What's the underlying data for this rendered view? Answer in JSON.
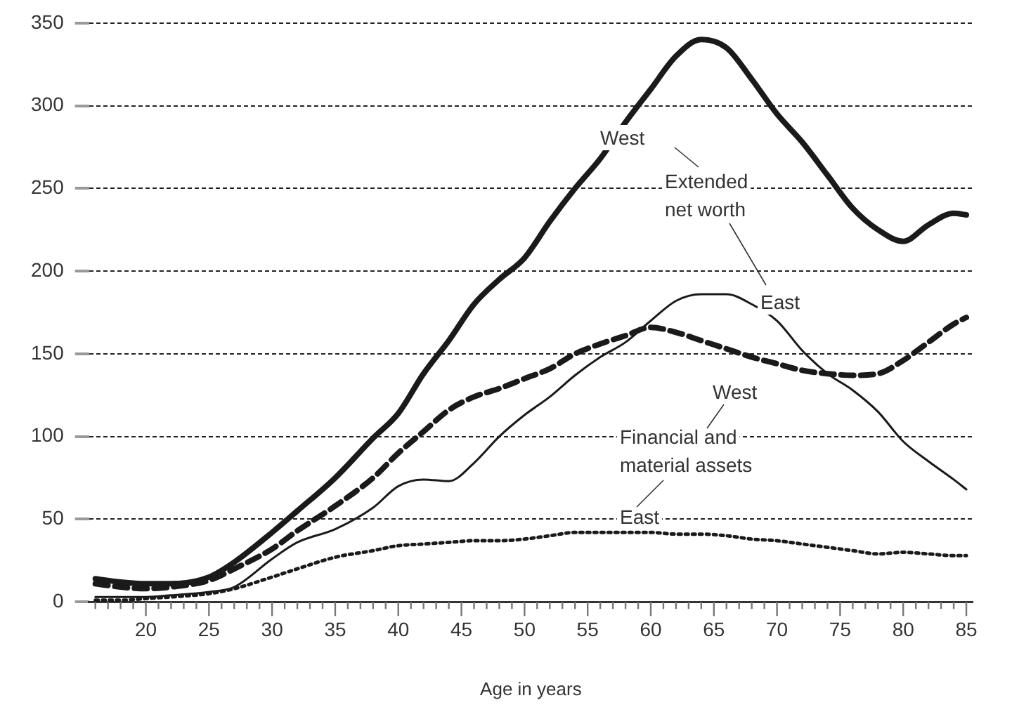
{
  "chart_data": {
    "type": "line",
    "xlabel": "Age in years",
    "xlim": [
      15.5,
      85.5
    ],
    "xticks": [
      {
        "value": 16,
        "label": null
      },
      {
        "value": 17,
        "label": null
      },
      {
        "value": 18,
        "label": null
      },
      {
        "value": 19,
        "label": null
      },
      20,
      {
        "value": 21,
        "label": null
      },
      {
        "value": 22,
        "label": null
      },
      {
        "value": 23,
        "label": null
      },
      {
        "value": 24,
        "label": null
      },
      25,
      {
        "value": 26,
        "label": null
      },
      {
        "value": 27,
        "label": null
      },
      {
        "value": 28,
        "label": null
      },
      {
        "value": 29,
        "label": null
      },
      30,
      {
        "value": 31,
        "label": null
      },
      {
        "value": 32,
        "label": null
      },
      {
        "value": 33,
        "label": null
      },
      {
        "value": 34,
        "label": null
      },
      35,
      {
        "value": 36,
        "label": null
      },
      {
        "value": 37,
        "label": null
      },
      {
        "value": 38,
        "label": null
      },
      {
        "value": 39,
        "label": null
      },
      40,
      {
        "value": 41,
        "label": null
      },
      {
        "value": 42,
        "label": null
      },
      {
        "value": 43,
        "label": null
      },
      {
        "value": 44,
        "label": null
      },
      45,
      {
        "value": 46,
        "label": null
      },
      {
        "value": 47,
        "label": null
      },
      {
        "value": 48,
        "label": null
      },
      {
        "value": 49,
        "label": null
      },
      50,
      {
        "value": 51,
        "label": null
      },
      {
        "value": 52,
        "label": null
      },
      {
        "value": 53,
        "label": null
      },
      {
        "value": 54,
        "label": null
      },
      55,
      {
        "value": 56,
        "label": null
      },
      {
        "value": 57,
        "label": null
      },
      {
        "value": 58,
        "label": null
      },
      {
        "value": 59,
        "label": null
      },
      60,
      {
        "value": 61,
        "label": null
      },
      {
        "value": 62,
        "label": null
      },
      {
        "value": 63,
        "label": null
      },
      {
        "value": 64,
        "label": null
      },
      65,
      {
        "value": 66,
        "label": null
      },
      {
        "value": 67,
        "label": null
      },
      {
        "value": 68,
        "label": null
      },
      {
        "value": 69,
        "label": null
      },
      70,
      {
        "value": 71,
        "label": null
      },
      {
        "value": 72,
        "label": null
      },
      {
        "value": 73,
        "label": null
      },
      {
        "value": 74,
        "label": null
      },
      75,
      {
        "value": 76,
        "label": null
      },
      {
        "value": 77,
        "label": null
      },
      {
        "value": 78,
        "label": null
      },
      {
        "value": 79,
        "label": null
      },
      80,
      {
        "value": 81,
        "label": null
      },
      {
        "value": 82,
        "label": null
      },
      {
        "value": 83,
        "label": null
      },
      {
        "value": 84,
        "label": null
      },
      85
    ],
    "ylim": [
      0,
      350
    ],
    "yticks": [
      0,
      50,
      100,
      150,
      200,
      250,
      300,
      350
    ],
    "grid": "y",
    "legend": false,
    "marker": "none",
    "x": [
      16,
      18,
      20,
      22,
      25,
      27,
      30,
      32,
      35,
      38,
      40,
      42,
      44,
      46,
      48,
      50,
      52,
      54,
      56,
      58,
      60,
      62,
      64,
      66,
      68,
      70,
      72,
      74,
      76,
      78,
      80,
      82,
      84,
      85
    ],
    "series": [
      {
        "color": "#1a1a1a",
        "line_style": "solid",
        "values": [
          14,
          12,
          11,
          11,
          15,
          24,
          42,
          55,
          75,
          99,
          114,
          138,
          158,
          180,
          195,
          208,
          230,
          250,
          268,
          290,
          310,
          330,
          340,
          335,
          316,
          295,
          278,
          258,
          238,
          225,
          218,
          228,
          235,
          234
        ]
      },
      {
        "color": "#1a1a1a",
        "line_style": "dashed",
        "values": [
          11,
          9,
          8,
          9,
          13,
          20,
          32,
          43,
          58,
          75,
          90,
          103,
          116,
          124,
          129,
          135,
          141,
          150,
          156,
          161,
          166,
          163,
          158,
          153,
          148,
          144,
          140,
          138,
          137,
          138,
          146,
          157,
          168,
          172
        ]
      },
      {
        "color": "#1a1a1a",
        "line_style": "solid",
        "values": [
          3,
          3,
          3,
          4,
          6,
          9,
          26,
          36,
          44,
          57,
          70,
          74,
          73,
          84,
          100,
          113,
          124,
          137,
          148,
          157,
          170,
          182,
          186,
          186,
          180,
          170,
          152,
          138,
          128,
          115,
          97,
          85,
          74,
          68
        ]
      },
      {
        "color": "#1a1a1a",
        "line_style": "dotted",
        "values": [
          1,
          1,
          2,
          3,
          5,
          8,
          15,
          20,
          27,
          31,
          34,
          35,
          36,
          37,
          37,
          38,
          40,
          42,
          42,
          42,
          42,
          41,
          41,
          40,
          38,
          37,
          35,
          33,
          31,
          29,
          30,
          29,
          28,
          28
        ]
      }
    ],
    "annotations": [
      "West",
      "Extended\nnet worth",
      "East",
      "West",
      "Financial and\nmaterial assets",
      "East"
    ]
  }
}
